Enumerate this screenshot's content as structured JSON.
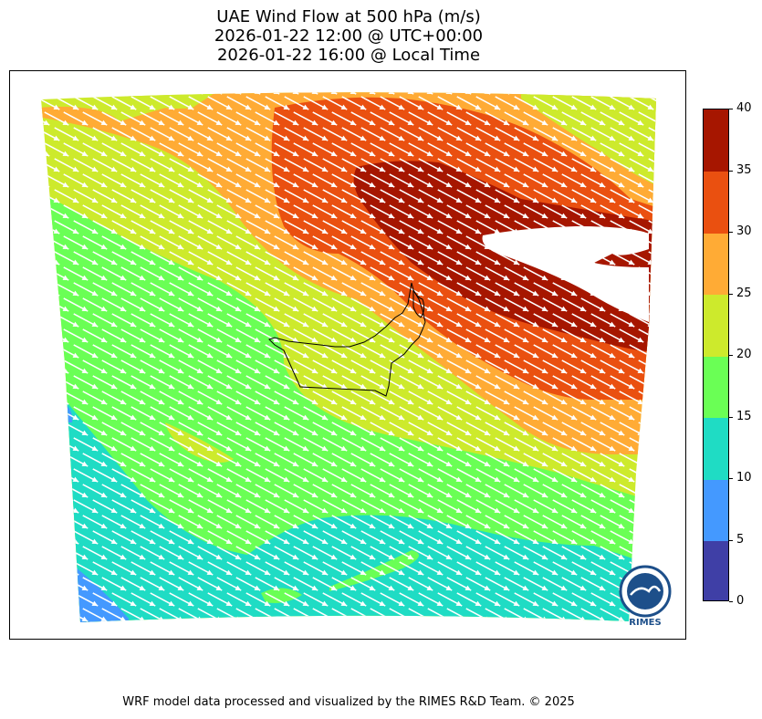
{
  "title": {
    "line1": "UAE Wind Flow at 500 hPa (m/s)",
    "line2": "2026-01-22 12:00 @ UTC+00:00",
    "line3": "2026-01-22 16:00 @ Local Time"
  },
  "colorbar": {
    "levels": [
      0,
      5,
      10,
      15,
      20,
      25,
      30,
      35,
      40
    ],
    "labels": [
      "0",
      "5",
      "10",
      "15",
      "20",
      "25",
      "30",
      "35",
      "40"
    ],
    "colors": [
      "#3f3fa6",
      "#4499ff",
      "#1fdcc4",
      "#6aff55",
      "#cdea2c",
      "#ffab35",
      "#ea5010",
      "#a61600"
    ]
  },
  "logo": {
    "text": "RIMES"
  },
  "footer": "WRF model data processed and visualized by the RIMES R&D Team. © 2025",
  "map": {
    "wind_direction": "west-northwest to east-southeast",
    "region": "UAE and surrounding Arabian Peninsula / Gulf"
  }
}
